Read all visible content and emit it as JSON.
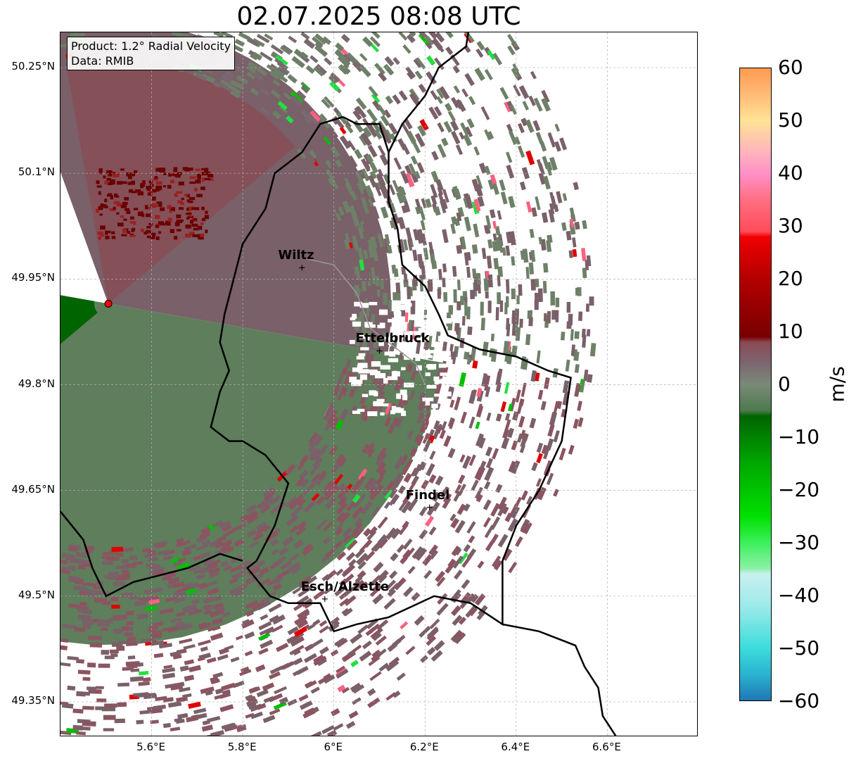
{
  "title": "02.07.2025 08:08 UTC",
  "info": {
    "product": "Product: 1.2° Radial Velocity",
    "data": "Data: RMIB"
  },
  "axes": {
    "lon_range": [
      5.4,
      6.8
    ],
    "lat_range": [
      49.3,
      50.3
    ],
    "lon_ticks": [
      {
        "value": 5.6,
        "label": "5.6°E"
      },
      {
        "value": 5.8,
        "label": "5.8°E"
      },
      {
        "value": 6.0,
        "label": "6°E"
      },
      {
        "value": 6.2,
        "label": "6.2°E"
      },
      {
        "value": 6.4,
        "label": "6.4°E"
      },
      {
        "value": 6.6,
        "label": "6.6°E"
      }
    ],
    "lat_ticks": [
      {
        "value": 50.25,
        "label": "50.25°N"
      },
      {
        "value": 50.1,
        "label": "50.1°N"
      },
      {
        "value": 49.95,
        "label": "49.95°N"
      },
      {
        "value": 49.8,
        "label": "49.8°N"
      },
      {
        "value": 49.65,
        "label": "49.65°N"
      },
      {
        "value": 49.5,
        "label": "49.5°N"
      },
      {
        "value": 49.35,
        "label": "49.35°N"
      }
    ]
  },
  "radar": {
    "lon": 5.505,
    "lat": 49.915,
    "max_range_lon": 1.07
  },
  "cities": [
    {
      "name": "Wiltz",
      "lon": 5.93,
      "lat": 49.966
    },
    {
      "name": "Ettelbruck",
      "lon": 6.1,
      "lat": 49.848
    },
    {
      "name": "Findel",
      "lon": 6.21,
      "lat": 49.626
    },
    {
      "name": "Esch/Alzette",
      "lon": 5.98,
      "lat": 49.496
    }
  ],
  "colorbar": {
    "label": "m/s",
    "min": -60,
    "max": 60,
    "ticks": [
      60,
      50,
      40,
      30,
      20,
      10,
      0,
      -10,
      -20,
      -30,
      -40,
      -50,
      -60
    ],
    "tick_labels": [
      "60",
      "50",
      "40",
      "30",
      "20",
      "10",
      "0",
      "−10",
      "−20",
      "−30",
      "−40",
      "−50",
      "−60"
    ],
    "stops": [
      {
        "v": -60,
        "color": "#1f77b4"
      },
      {
        "v": -55,
        "color": "#2ab3d0"
      },
      {
        "v": -50,
        "color": "#3ddcdc"
      },
      {
        "v": -42,
        "color": "#9eeaea"
      },
      {
        "v": -36,
        "color": "#c8f0f0"
      },
      {
        "v": -35,
        "color": "#8ef0a8"
      },
      {
        "v": -30,
        "color": "#3cf05a"
      },
      {
        "v": -25,
        "color": "#00e000"
      },
      {
        "v": -15,
        "color": "#00a800"
      },
      {
        "v": -6,
        "color": "#006400"
      },
      {
        "v": -5,
        "color": "#4d7a4d"
      },
      {
        "v": 0,
        "color": "#7a8a78"
      },
      {
        "v": 4,
        "color": "#7d6670"
      },
      {
        "v": 8,
        "color": "#8a4a55"
      },
      {
        "v": 9,
        "color": "#780000"
      },
      {
        "v": 20,
        "color": "#b40000"
      },
      {
        "v": 28,
        "color": "#f00000"
      },
      {
        "v": 29,
        "color": "#ff4c5a"
      },
      {
        "v": 35,
        "color": "#ff6e82"
      },
      {
        "v": 40,
        "color": "#ff90c8"
      },
      {
        "v": 44,
        "color": "#ffb4bc"
      },
      {
        "v": 50,
        "color": "#ffe296"
      },
      {
        "v": 55,
        "color": "#ffbc78"
      },
      {
        "v": 60,
        "color": "#ff9a50"
      }
    ]
  },
  "colors": {
    "inbound_dark": "#006400",
    "inbound_gray": "#5e7e5c",
    "outbound_gray": "#7a6068",
    "outbound_dark": "#7a0000",
    "border": "#000000",
    "river": "#9a9a9a",
    "radar_site": "#ff0000"
  }
}
